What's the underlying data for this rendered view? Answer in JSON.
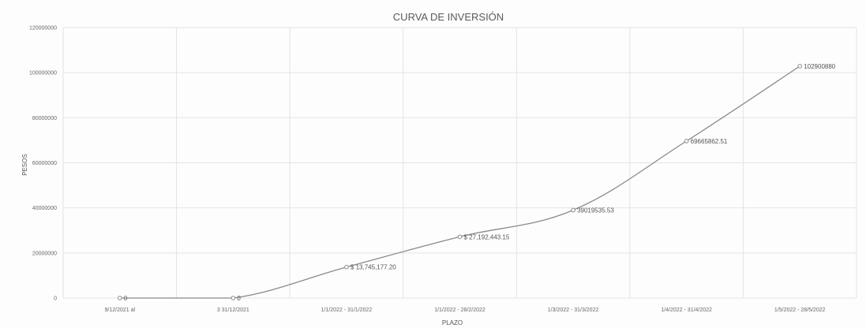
{
  "chart_data": {
    "type": "line",
    "title": "CURVA DE INVERSIÓN",
    "xlabel": "PLAZO",
    "ylabel": "PESOS",
    "ylim": [
      0,
      120000000
    ],
    "yticks": [
      "0",
      "20000000",
      "40000000",
      "60000000",
      "80000000",
      "100000000",
      "120000000"
    ],
    "grid": true,
    "legend": "none",
    "categories": [
      "9/12/2021 al",
      "3 31/12/2021",
      "1/1/2022 - 31/1/2022",
      "1/1/2022 - 28/2/2022",
      "1/3/2022 - 31/3/2022",
      "1/4/2022 - 31/4/2022",
      "1/5/2022 - 28/5/2022"
    ],
    "series": [
      {
        "values": [
          0,
          0,
          13745177.2,
          27192443.15,
          39019535.53,
          69665862.51,
          102900880
        ],
        "labels": [
          "0",
          "0",
          "$ 13,745,177.20",
          "$ 27,192,443.15",
          "39019535.53",
          "69665862.51",
          "102900880"
        ]
      }
    ],
    "color": "#8a8a8a"
  }
}
